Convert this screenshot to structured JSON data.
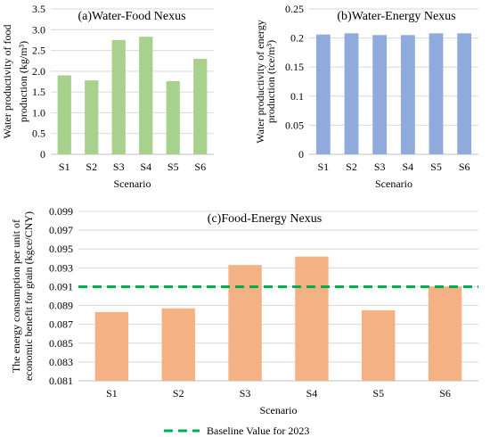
{
  "chart_data": [
    {
      "id": "a",
      "type": "bar",
      "title": "(a)Water-Food Nexus",
      "ylabel": "Water productivity of food production (kg/m³)",
      "ylabel_lines": [
        "Water productivity of food",
        "production (kg/m³)"
      ],
      "xlabel": "Scenario",
      "categories": [
        "S1",
        "S2",
        "S3",
        "S4",
        "S5",
        "S6"
      ],
      "values": [
        1.9,
        1.78,
        2.75,
        2.83,
        1.76,
        2.3
      ],
      "ylim": [
        0,
        3.5
      ],
      "yticks": [
        "0",
        "0.5",
        "1.0",
        "1.5",
        "2.0",
        "2.5",
        "3.0",
        "3.5"
      ],
      "grid": true,
      "color": "#a9d18e"
    },
    {
      "id": "b",
      "type": "bar",
      "title": "(b)Water-Energy Nexus",
      "ylabel": "Water productivity of energy production (tce/m³)",
      "ylabel_lines": [
        "Water productivity of energy",
        "production (tce/m³)"
      ],
      "xlabel": "Scenario",
      "categories": [
        "S1",
        "S2",
        "S3",
        "S4",
        "S5",
        "S6"
      ],
      "values": [
        0.206,
        0.208,
        0.205,
        0.205,
        0.208,
        0.208
      ],
      "ylim": [
        0,
        0.25
      ],
      "yticks": [
        "0",
        "0.05",
        "0.1",
        "0.15",
        "0.2",
        "0.25"
      ],
      "grid": true,
      "color": "#8faadc"
    },
    {
      "id": "c",
      "type": "bar",
      "title": "(c)Food-Energy Nexus",
      "ylabel": "The energy consumption per unit of economic benefit for grain (kgce/CNY)",
      "ylabel_lines": [
        "The energy consumption per unit of",
        "economic benefit for grain (kgce/CNY)"
      ],
      "xlabel": "Scenario",
      "categories": [
        "S1",
        "S2",
        "S3",
        "S4",
        "S5",
        "S6"
      ],
      "values": [
        0.0883,
        0.0887,
        0.0933,
        0.0942,
        0.0885,
        0.091
      ],
      "ylim": [
        0.081,
        0.099
      ],
      "yticks": [
        "0.081",
        "0.083",
        "0.085",
        "0.087",
        "0.089",
        "0.091",
        "0.093",
        "0.095",
        "0.097",
        "0.099"
      ],
      "grid": true,
      "color": "#f4b183",
      "baseline": {
        "name": "Baseline Value for 2023",
        "value": 0.091,
        "color": "#00b050"
      },
      "legend_position": "bottom"
    }
  ]
}
